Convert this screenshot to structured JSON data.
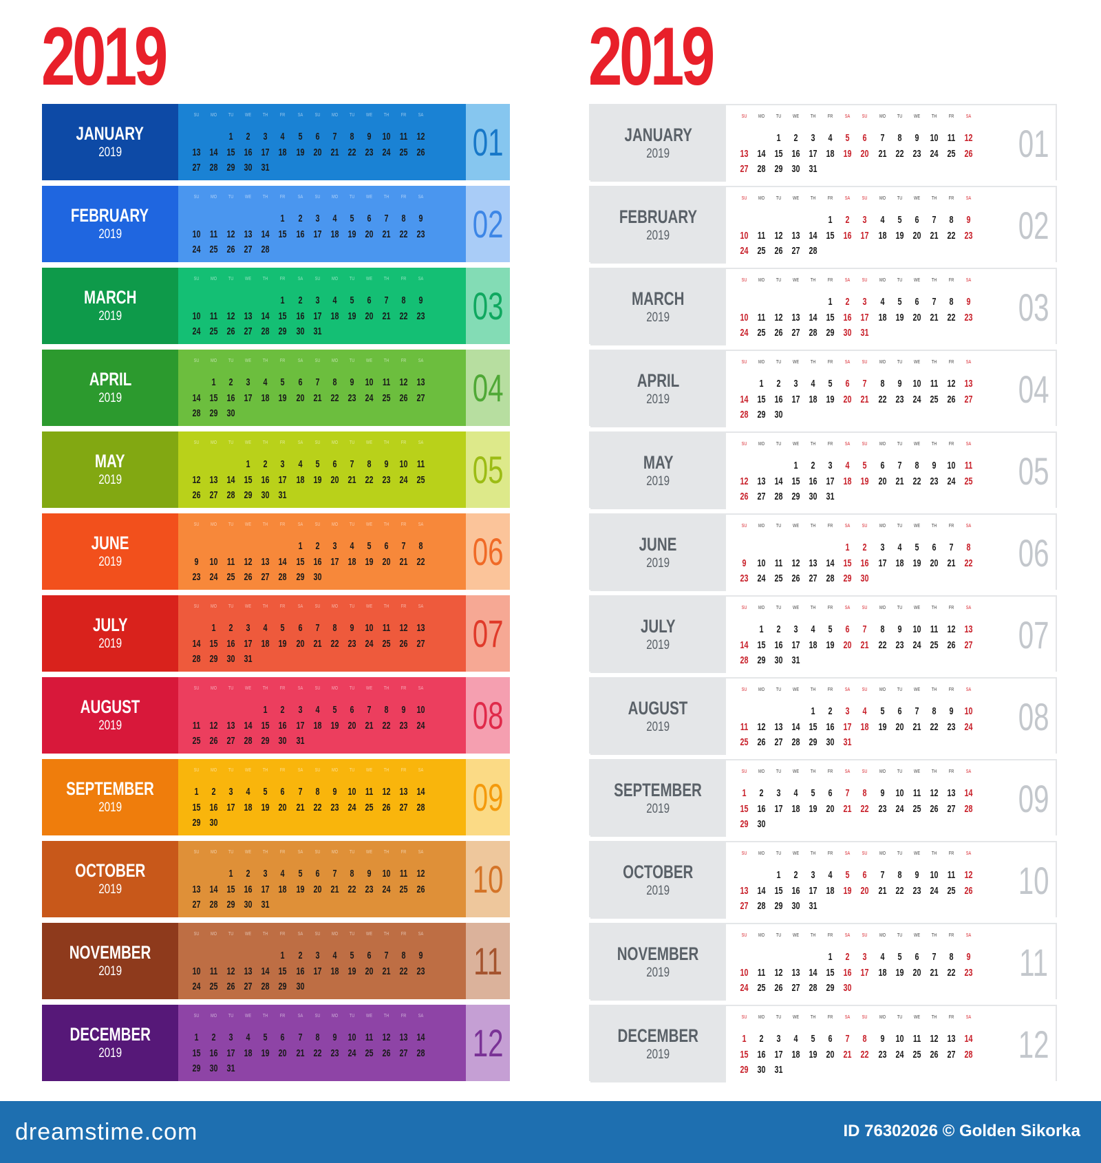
{
  "year_title": "2019",
  "weekday_headers": [
    "SU",
    "MO",
    "TU",
    "WE",
    "TH",
    "FR",
    "SA",
    "SU",
    "MO",
    "TU",
    "WE",
    "TH",
    "FR",
    "SA"
  ],
  "months": [
    {
      "name": "JANUARY",
      "year": "2019",
      "num": "01",
      "offset": 2,
      "days": 31,
      "dark": "#0d4aa6",
      "mid": "#1a82d4",
      "light": "#86c6ef",
      "numcolor": "#1878c8"
    },
    {
      "name": "FEBRUARY",
      "year": "2019",
      "num": "02",
      "offset": 5,
      "days": 28,
      "dark": "#1f66e0",
      "mid": "#4a96ef",
      "light": "#a9ccf7",
      "numcolor": "#3d86e6"
    },
    {
      "name": "MARCH",
      "year": "2019",
      "num": "03",
      "offset": 5,
      "days": 31,
      "dark": "#0e9a4a",
      "mid": "#14bf74",
      "light": "#83dcb5",
      "numcolor": "#10a860"
    },
    {
      "name": "APRIL",
      "year": "2019",
      "num": "04",
      "offset": 1,
      "days": 30,
      "dark": "#2c9a2e",
      "mid": "#6cbe3e",
      "light": "#b7dea0",
      "numcolor": "#4fa836"
    },
    {
      "name": "MAY",
      "year": "2019",
      "num": "05",
      "offset": 3,
      "days": 31,
      "dark": "#82a812",
      "mid": "#b9d11a",
      "light": "#dde98a",
      "numcolor": "#9cbc14"
    },
    {
      "name": "JUNE",
      "year": "2019",
      "num": "06",
      "offset": 6,
      "days": 30,
      "dark": "#f2501c",
      "mid": "#f7883a",
      "light": "#fbc49a",
      "numcolor": "#f06a26"
    },
    {
      "name": "JULY",
      "year": "2019",
      "num": "07",
      "offset": 1,
      "days": 31,
      "dark": "#d9221c",
      "mid": "#ee5a3c",
      "light": "#f6a894",
      "numcolor": "#e03a2a"
    },
    {
      "name": "AUGUST",
      "year": "2019",
      "num": "08",
      "offset": 4,
      "days": 31,
      "dark": "#d8183a",
      "mid": "#ec3e5e",
      "light": "#f59fb0",
      "numcolor": "#e02a4a"
    },
    {
      "name": "SEPTEMBER",
      "year": "2019",
      "num": "09",
      "offset": 0,
      "days": 30,
      "dark": "#ef7d0c",
      "mid": "#f9b50c",
      "light": "#fbda85",
      "numcolor": "#f49a0c"
    },
    {
      "name": "OCTOBER",
      "year": "2019",
      "num": "10",
      "offset": 2,
      "days": 31,
      "dark": "#c8581a",
      "mid": "#df9038",
      "light": "#eec79c",
      "numcolor": "#d47428"
    },
    {
      "name": "NOVEMBER",
      "year": "2019",
      "num": "11",
      "offset": 5,
      "days": 30,
      "dark": "#8e3a1c",
      "mid": "#be6e44",
      "light": "#dbb29b",
      "numcolor": "#a5542e"
    },
    {
      "name": "DECEMBER",
      "year": "2019",
      "num": "12",
      "offset": 0,
      "days": 31,
      "dark": "#561878",
      "mid": "#8e44a6",
      "light": "#c59fd4",
      "numcolor": "#7a3296"
    }
  ],
  "footer": {
    "logo": "dreamstime.com",
    "id_text": "ID 76302026 © Golden Sikorka"
  },
  "colors": {
    "red_title": "#e8202a",
    "footer_bg": "#1e6fb0",
    "weekend_red": "#c8202a",
    "label_grey": "#e4e6e8",
    "number_grey": "#c3c7cc"
  }
}
